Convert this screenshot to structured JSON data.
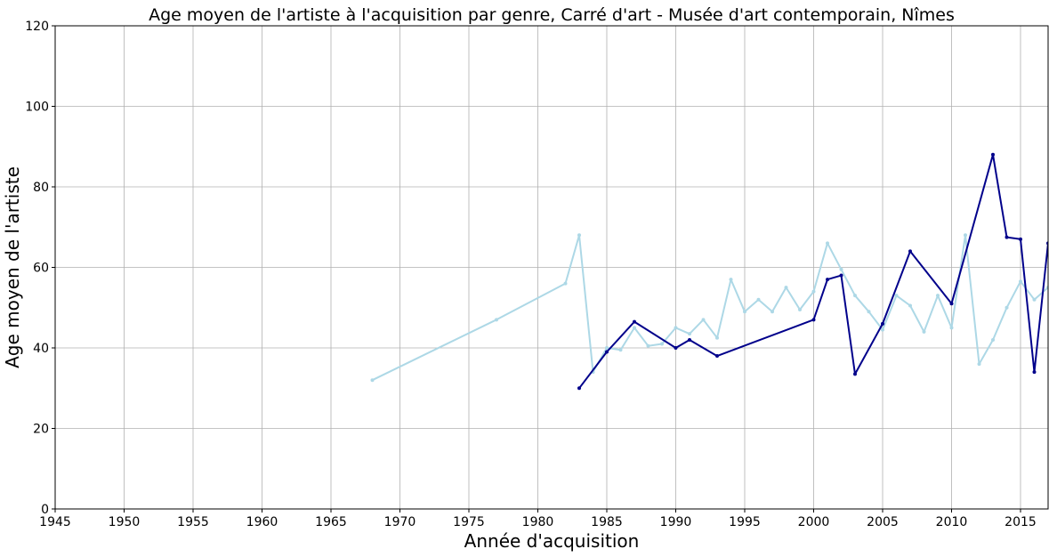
{
  "chart_data": {
    "type": "line",
    "title": "Age moyen de l'artiste à l'acquisition par genre, Carré d'art - Musée d'art contemporain, Nîmes",
    "xlabel": "Année d'acquisition",
    "ylabel": "Age moyen de l'artiste",
    "xlim": [
      1945,
      2017
    ],
    "ylim": [
      0,
      120
    ],
    "grid": true,
    "x_ticks": [
      1945,
      1950,
      1955,
      1960,
      1965,
      1970,
      1975,
      1980,
      1985,
      1990,
      1995,
      2000,
      2005,
      2010,
      2015
    ],
    "y_ticks": [
      0,
      20,
      40,
      60,
      80,
      100,
      120
    ],
    "series": [
      {
        "color": "#add8e6",
        "x": [
          1968,
          1977,
          1982,
          1983,
          1984,
          1985,
          1986,
          1987,
          1988,
          1989,
          1990,
          1991,
          1992,
          1993,
          1994,
          1995,
          1996,
          1997,
          1998,
          1999,
          2000,
          2001,
          2002,
          2003,
          2004,
          2005,
          2006,
          2007,
          2008,
          2009,
          2010,
          2011,
          2012,
          2013,
          2014,
          2015,
          2016,
          2017
        ],
        "y": [
          32,
          47,
          56,
          68,
          34,
          40,
          39.5,
          45,
          40.5,
          41,
          45,
          43.5,
          47,
          42.5,
          57,
          49,
          52,
          49,
          55,
          49.5,
          54,
          66,
          59.5,
          53,
          49,
          44.5,
          53,
          50.5,
          44,
          53,
          45,
          68,
          36,
          42,
          50,
          56.5,
          52,
          55
        ]
      },
      {
        "color": "#00008b",
        "x": [
          1983,
          1985,
          1987,
          1990,
          1991,
          1993,
          2000,
          2001,
          2002,
          2003,
          2005,
          2007,
          2010,
          2013,
          2014,
          2015,
          2016,
          2017
        ],
        "y": [
          30,
          39,
          46.5,
          40,
          42,
          38,
          47,
          57,
          58,
          33.5,
          46,
          64,
          51,
          88,
          67.5,
          67,
          34,
          66
        ]
      }
    ]
  }
}
